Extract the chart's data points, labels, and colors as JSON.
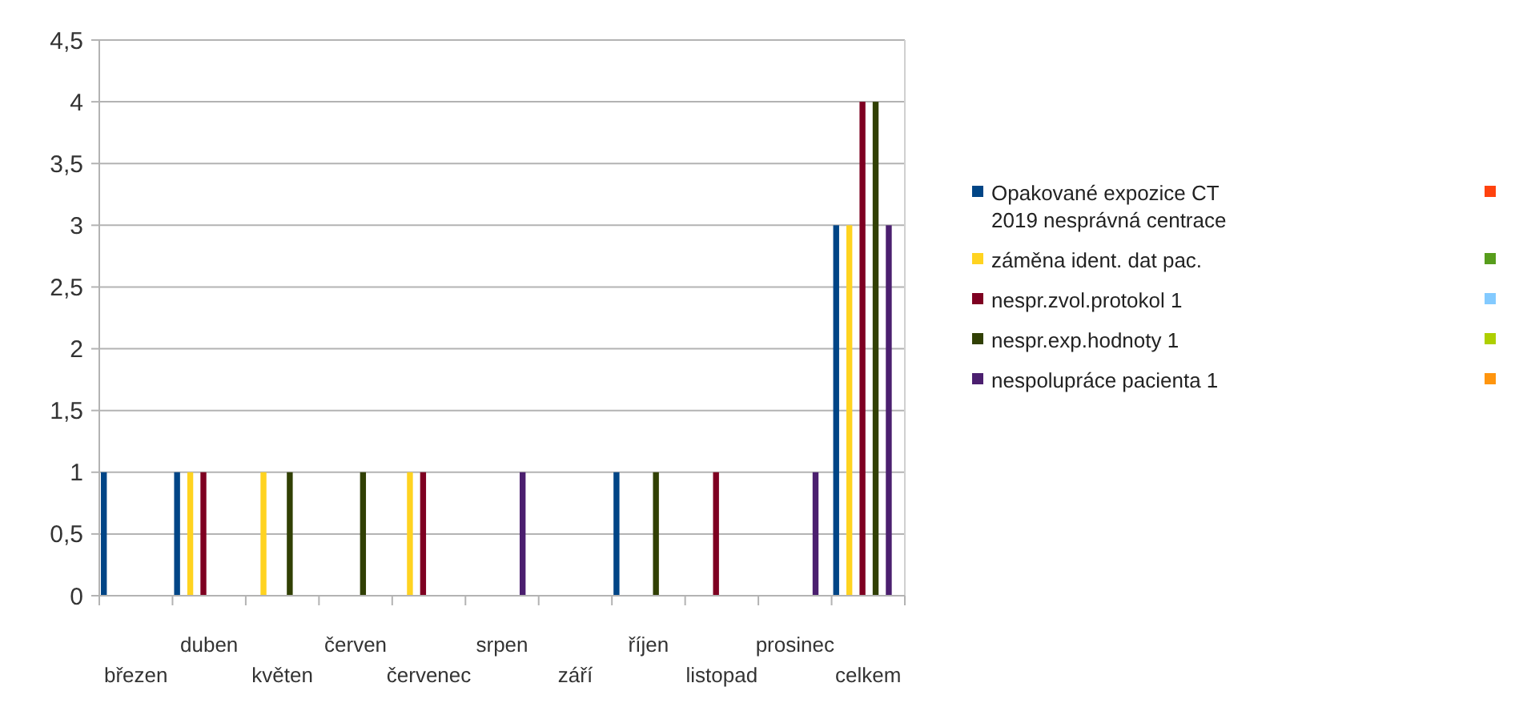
{
  "chart_data": {
    "type": "bar",
    "categories": [
      "březen",
      "duben",
      "květen",
      "červen",
      "červenec",
      "srpen",
      "září",
      "říjen",
      "listopad",
      "prosinec",
      "celkem"
    ],
    "series": [
      {
        "name": "Opakované expozice CT 2019 nesprávná centrace",
        "color": "#004586",
        "values": [
          1,
          1,
          null,
          null,
          null,
          null,
          null,
          1,
          null,
          null,
          3
        ]
      },
      {
        "color": "#ff420e",
        "values": [
          null,
          null,
          null,
          null,
          null,
          null,
          null,
          null,
          null,
          null,
          null
        ]
      },
      {
        "name": "záměna ident. dat pac.",
        "color": "#ffd320",
        "values": [
          null,
          1,
          1,
          null,
          1,
          null,
          null,
          null,
          null,
          null,
          3
        ]
      },
      {
        "color": "#579d1c",
        "values": [
          null,
          null,
          null,
          null,
          null,
          null,
          null,
          null,
          null,
          null,
          null
        ]
      },
      {
        "name": "nespr.zvol.protokol 1",
        "color": "#7e0021",
        "values": [
          null,
          1,
          null,
          null,
          1,
          null,
          null,
          null,
          1,
          null,
          4
        ]
      },
      {
        "color": "#83caff",
        "values": [
          null,
          null,
          null,
          null,
          null,
          null,
          null,
          null,
          null,
          null,
          null
        ]
      },
      {
        "name": "nespr.exp.hodnoty  1",
        "color": "#314004",
        "values": [
          null,
          null,
          1,
          1,
          null,
          null,
          null,
          1,
          null,
          null,
          4
        ]
      },
      {
        "color": "#aecf00",
        "values": [
          null,
          null,
          null,
          null,
          null,
          null,
          null,
          null,
          null,
          null,
          null
        ]
      },
      {
        "name": "nespolupráce pacienta  1",
        "color": "#4b1f6f",
        "values": [
          null,
          null,
          null,
          null,
          null,
          1,
          null,
          null,
          null,
          1,
          3
        ]
      },
      {
        "color": "#ff950e",
        "values": [
          null,
          null,
          null,
          null,
          null,
          null,
          null,
          null,
          null,
          null,
          null
        ]
      }
    ],
    "ylim": [
      0,
      4.5
    ],
    "yticks": [
      0,
      {
        "value": 0.5,
        "label": "0,5"
      },
      1,
      {
        "value": 1.5,
        "label": "1,5"
      },
      2,
      {
        "value": 2.5,
        "label": "2,5"
      },
      3,
      {
        "value": 3.5,
        "label": "3,5"
      },
      4,
      {
        "value": 4.5,
        "label": "4,5"
      }
    ],
    "grid": "y",
    "legend": "right"
  }
}
